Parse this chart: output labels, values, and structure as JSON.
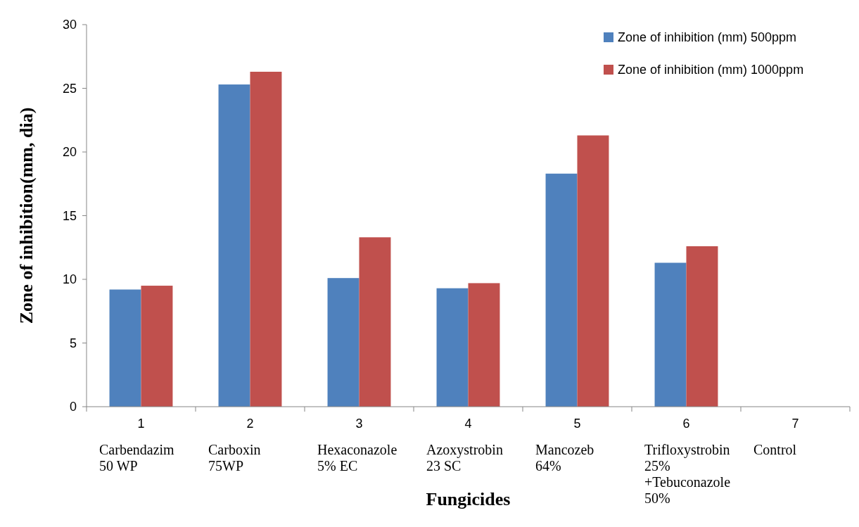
{
  "chart_data": {
    "type": "bar",
    "xlabel": "Fungicides",
    "ylabel": "Zone of inhibition(mm, dia)",
    "categories": [
      "1\nCarbendazim\n50 WP",
      "2\nCarboxin\n75WP",
      "3\nHexaconazole\n5% EC",
      "4\nAzoxystrobin\n23 SC",
      "5\nMancozeb\n64%",
      "6\nTrifloxystrobin\n25%\n+Tebuconazole\n50%",
      "7\nControl"
    ],
    "series": [
      {
        "name": "Zone of inhibition (mm) 500ppm",
        "color": "#4f81bd",
        "values": [
          9.2,
          25.3,
          10.1,
          9.3,
          18.3,
          11.3,
          0
        ]
      },
      {
        "name": "Zone of inhibition (mm) 1000ppm",
        "color": "#c0504d",
        "values": [
          9.5,
          26.3,
          13.3,
          9.7,
          21.3,
          12.6,
          0
        ]
      }
    ],
    "ylim": [
      0,
      30
    ],
    "yticks": [
      0,
      5,
      10,
      15,
      20,
      25,
      30
    ],
    "legend": "top right"
  }
}
